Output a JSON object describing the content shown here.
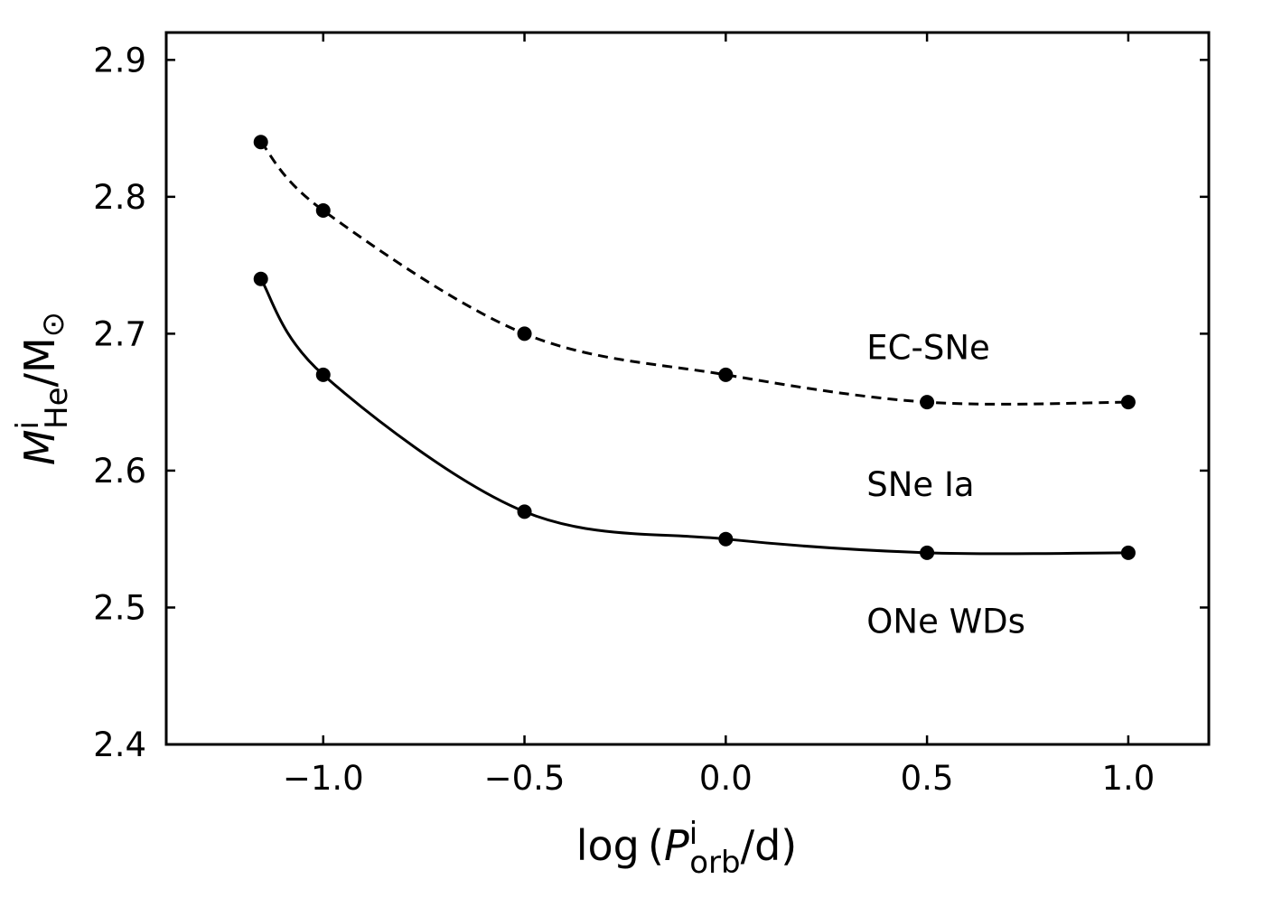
{
  "chart_data": {
    "type": "line",
    "xlabel": {
      "prefix": "log (",
      "var": "P",
      "sup": "i",
      "sub": "orb",
      "suffix": "/d)"
    },
    "ylabel": {
      "var": "M",
      "sup": "i",
      "sub": "He",
      "suffix": "/M",
      "unit_sub": "⊙"
    },
    "xlim": [
      -1.39,
      1.2
    ],
    "ylim": [
      2.4,
      2.92
    ],
    "x_ticks": [
      {
        "value": -1.0,
        "label": "−1.0"
      },
      {
        "value": -0.5,
        "label": "−0.5"
      },
      {
        "value": 0.0,
        "label": "0.0"
      },
      {
        "value": 0.5,
        "label": "0.5"
      },
      {
        "value": 1.0,
        "label": "1.0"
      }
    ],
    "y_ticks": [
      {
        "value": 2.4,
        "label": "2.4"
      },
      {
        "value": 2.5,
        "label": "2.5"
      },
      {
        "value": 2.6,
        "label": "2.6"
      },
      {
        "value": 2.7,
        "label": "2.7"
      },
      {
        "value": 2.8,
        "label": "2.8"
      },
      {
        "value": 2.9,
        "label": "2.9"
      }
    ],
    "grid": false,
    "series": [
      {
        "id": "upper",
        "line_style": "dashed",
        "color": "#000000",
        "points": [
          {
            "x": -1.155,
            "y": 2.84
          },
          {
            "x": -1.0,
            "y": 2.79
          },
          {
            "x": -0.5,
            "y": 2.7
          },
          {
            "x": 0.0,
            "y": 2.67
          },
          {
            "x": 0.5,
            "y": 2.65
          },
          {
            "x": 1.0,
            "y": 2.65
          }
        ]
      },
      {
        "id": "lower",
        "line_style": "solid",
        "color": "#000000",
        "points": [
          {
            "x": -1.155,
            "y": 2.74
          },
          {
            "x": -1.0,
            "y": 2.67
          },
          {
            "x": -0.5,
            "y": 2.57
          },
          {
            "x": 0.0,
            "y": 2.55
          },
          {
            "x": 0.5,
            "y": 2.54
          },
          {
            "x": 1.0,
            "y": 2.54
          }
        ]
      }
    ],
    "annotations": [
      {
        "text": "EC-SNe",
        "x": 0.35,
        "y": 2.69
      },
      {
        "text": "SNe Ia",
        "x": 0.35,
        "y": 2.59
      },
      {
        "text": "ONe WDs",
        "x": 0.35,
        "y": 2.49
      }
    ]
  }
}
